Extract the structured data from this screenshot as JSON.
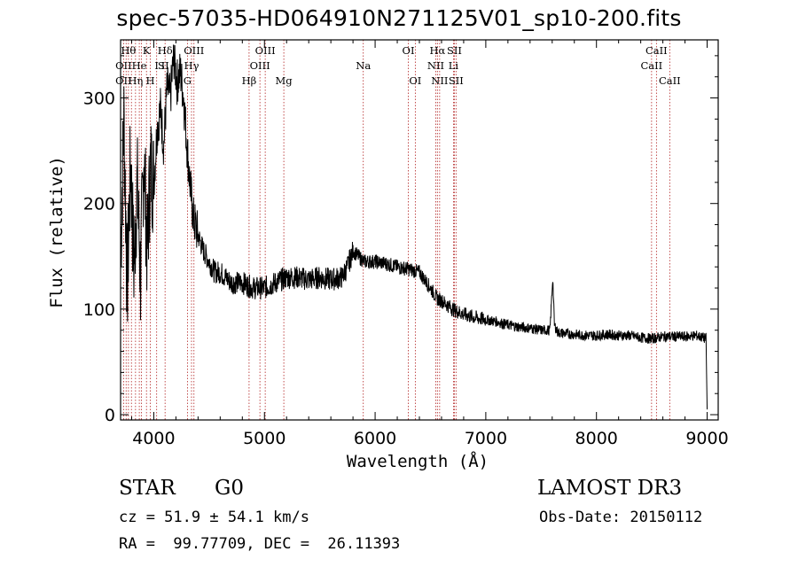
{
  "chart_data": {
    "type": "line",
    "title": "spec-57035-HD064910N271125V01_sp10-200.fits",
    "xlabel": "Wavelength (Å)",
    "ylabel": "Flux (relative)",
    "xlim": [
      3700,
      9100
    ],
    "ylim": [
      -5,
      355
    ],
    "xticks": [
      4000,
      5000,
      6000,
      7000,
      8000,
      9000
    ],
    "yticks": [
      0,
      100,
      200,
      300
    ],
    "xtick_labels": [
      "4000",
      "5000",
      "6000",
      "7000",
      "8000",
      "9000"
    ],
    "ytick_labels": [
      "0",
      "100",
      "200",
      "300"
    ],
    "series": [
      {
        "name": "spectrum",
        "x": [
          3700,
          3730,
          3760,
          3790,
          3820,
          3850,
          3880,
          3910,
          3940,
          3970,
          4000,
          4030,
          4060,
          4090,
          4120,
          4150,
          4180,
          4210,
          4240,
          4270,
          4300,
          4330,
          4360,
          4400,
          4450,
          4500,
          4550,
          4600,
          4700,
          4800,
          4900,
          5000,
          5100,
          5200,
          5300,
          5400,
          5500,
          5600,
          5700,
          5750,
          5800,
          5900,
          6000,
          6100,
          6200,
          6300,
          6400,
          6500,
          6560,
          6600,
          6700,
          6800,
          6900,
          7000,
          7100,
          7200,
          7300,
          7400,
          7500,
          7580,
          7605,
          7620,
          7650,
          7700,
          7800,
          7900,
          8000,
          8100,
          8200,
          8300,
          8400,
          8500,
          8600,
          8700,
          8800,
          8900,
          8990,
          9000
        ],
        "y": [
          150,
          280,
          120,
          240,
          140,
          220,
          130,
          250,
          155,
          235,
          220,
          270,
          290,
          255,
          310,
          300,
          340,
          315,
          325,
          300,
          255,
          215,
          185,
          170,
          155,
          145,
          135,
          135,
          125,
          125,
          120,
          120,
          125,
          130,
          130,
          128,
          130,
          128,
          130,
          140,
          155,
          145,
          145,
          143,
          140,
          138,
          135,
          120,
          110,
          108,
          100,
          95,
          92,
          90,
          88,
          85,
          83,
          82,
          80,
          80,
          130,
          85,
          78,
          77,
          76,
          75,
          75,
          76,
          75,
          75,
          73,
          72,
          74,
          74,
          74,
          75,
          72,
          5
        ]
      }
    ],
    "line_marks": {
      "wavelengths": [
        3727,
        3750,
        3771,
        3798,
        3835,
        3869,
        3889,
        3934,
        3969,
        4026,
        4102,
        4304,
        4341,
        4363,
        4861,
        4959,
        5007,
        5175,
        5893,
        6300,
        6363,
        6548,
        6563,
        6583,
        6708,
        6716,
        6731,
        8498,
        8542,
        8662
      ],
      "labels": [
        {
          "text": "OII",
          "x": 3727,
          "row": 2
        },
        {
          "text": "OII",
          "x": 3727,
          "row": 3
        },
        {
          "text": "Hθ",
          "x": 3771,
          "row": 1
        },
        {
          "text": "Hη",
          "x": 3835,
          "row": 3
        },
        {
          "text": "He",
          "x": 3869,
          "row": 2
        },
        {
          "text": "K",
          "x": 3934,
          "row": 1
        },
        {
          "text": "H",
          "x": 3969,
          "row": 3
        },
        {
          "text": "I",
          "x": 4026,
          "row": 2
        },
        {
          "text": "S",
          "x": 4068,
          "row": 2
        },
        {
          "text": "Hδ",
          "x": 4102,
          "row": 1
        },
        {
          "text": "II",
          "x": 4102,
          "row": 2
        },
        {
          "text": "G",
          "x": 4304,
          "row": 3
        },
        {
          "text": "Hγ",
          "x": 4341,
          "row": 2
        },
        {
          "text": "OIII",
          "x": 4363,
          "row": 1
        },
        {
          "text": "Hβ",
          "x": 4861,
          "row": 3
        },
        {
          "text": "OIII",
          "x": 4959,
          "row": 2
        },
        {
          "text": "OIII",
          "x": 5007,
          "row": 1
        },
        {
          "text": "Mg",
          "x": 5175,
          "row": 3
        },
        {
          "text": "Na",
          "x": 5893,
          "row": 2
        },
        {
          "text": "OI",
          "x": 6300,
          "row": 1
        },
        {
          "text": "OI",
          "x": 6363,
          "row": 3
        },
        {
          "text": "Hα",
          "x": 6563,
          "row": 1
        },
        {
          "text": "NII",
          "x": 6548,
          "row": 2
        },
        {
          "text": "NII",
          "x": 6583,
          "row": 3
        },
        {
          "text": "SII",
          "x": 6716,
          "row": 1
        },
        {
          "text": "Li",
          "x": 6708,
          "row": 2
        },
        {
          "text": "SII",
          "x": 6731,
          "row": 3
        },
        {
          "text": "CaII",
          "x": 8542,
          "row": 1
        },
        {
          "text": "CaII",
          "x": 8498,
          "row": 2
        },
        {
          "text": "CaII",
          "x": 8662,
          "row": 3
        }
      ]
    }
  },
  "info": {
    "object_type": "STAR",
    "subclass": "G0",
    "survey": "LAMOST DR3",
    "cz": "cz = 51.9 ± 54.1 km/s",
    "obs_date": "Obs-Date: 20150112",
    "coords": "RA =  99.77709, DEC =  26.11393"
  }
}
